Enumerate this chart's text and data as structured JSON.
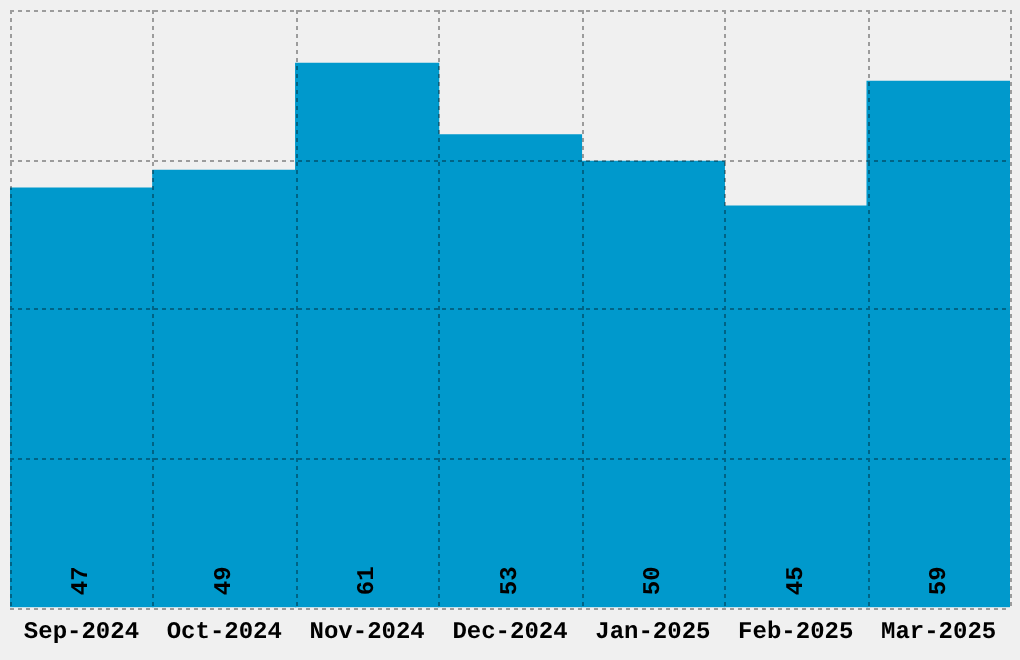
{
  "chart_data": {
    "type": "bar",
    "categories": [
      "Sep-2024",
      "Oct-2024",
      "Nov-2024",
      "Dec-2024",
      "Jan-2025",
      "Feb-2025",
      "Mar-2025"
    ],
    "values": [
      47,
      49,
      61,
      53,
      50,
      45,
      59
    ],
    "color": "#0099cc",
    "ylim": [
      0,
      67
    ],
    "grid": true,
    "legend": false,
    "tick_labels": "x",
    "data_labels": true
  }
}
